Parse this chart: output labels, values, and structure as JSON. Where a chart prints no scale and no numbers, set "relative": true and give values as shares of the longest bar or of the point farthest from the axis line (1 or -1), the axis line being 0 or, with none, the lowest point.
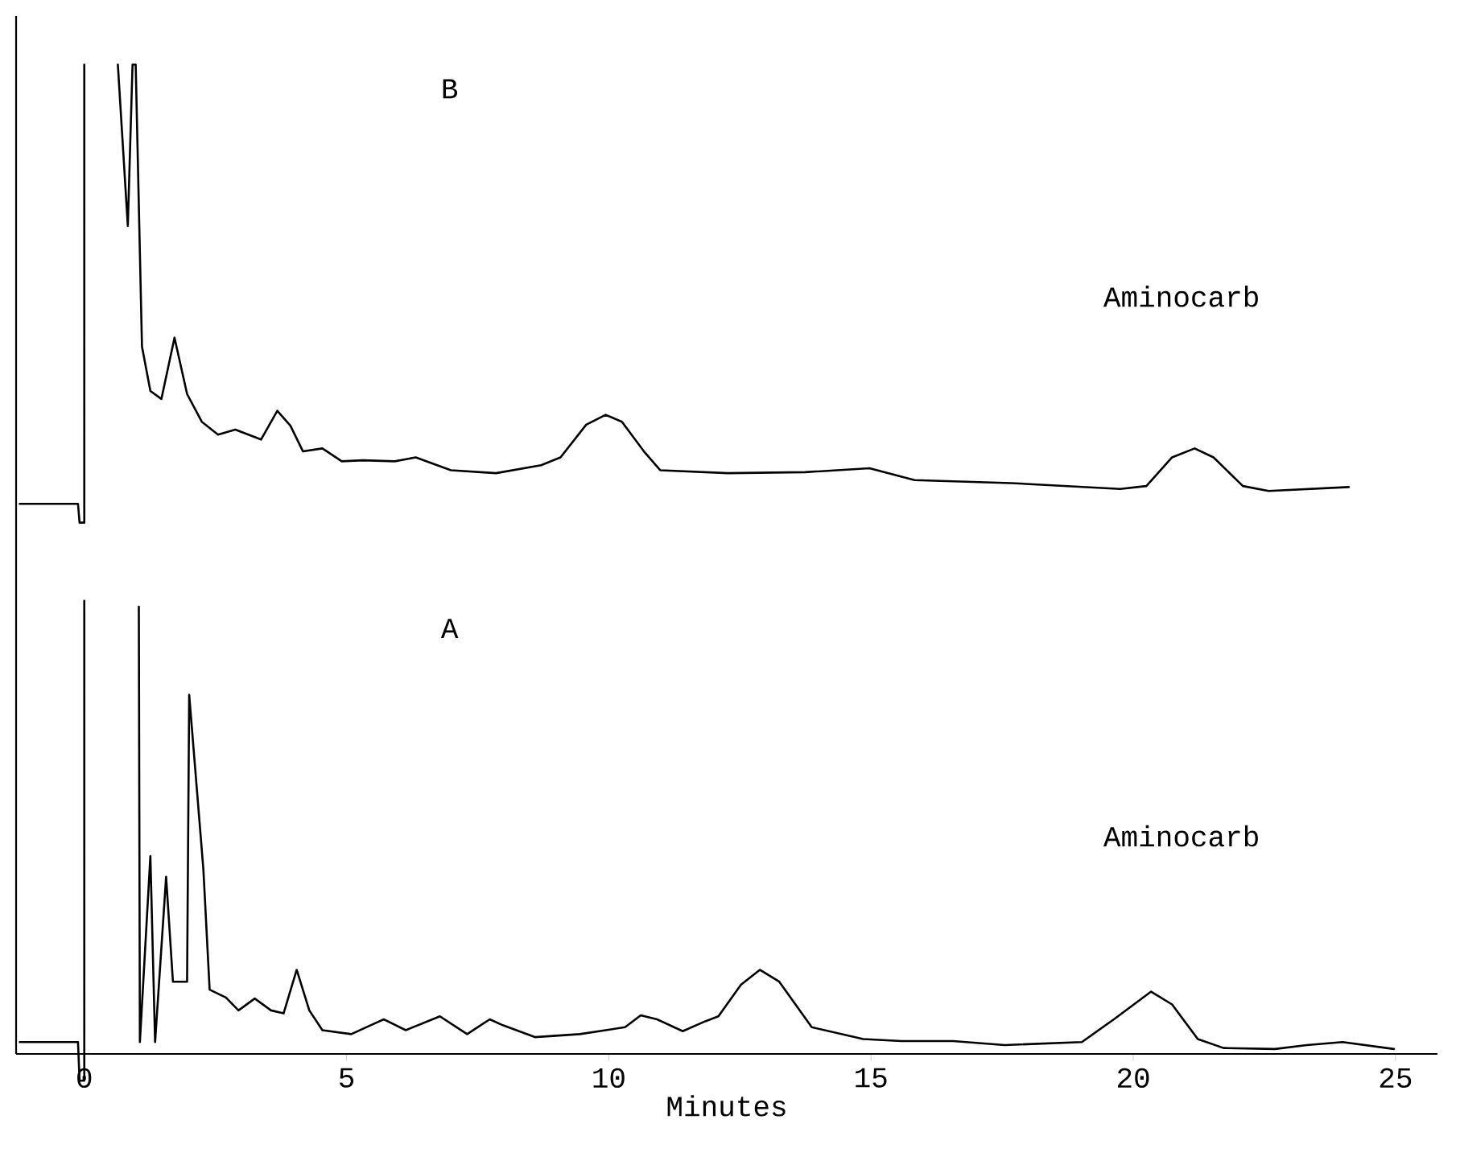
{
  "chart_data": {
    "type": "line",
    "relative": true,
    "xlabel": "Minutes",
    "xlim": [
      -1.3,
      25.8
    ],
    "xticks": [
      0,
      5,
      10,
      15,
      20,
      25
    ],
    "grid": false,
    "marker": "none",
    "line_style": "solid",
    "annotations": [
      "B",
      "Aminocarb",
      "A",
      "Aminocarb"
    ],
    "series": [
      {
        "color": "#000000",
        "x": [
          -1.23,
          -0.12,
          -0.09,
          0,
          0,
          null,
          0.64,
          0.83,
          0.92,
          0.98,
          1.1,
          1.26,
          1.47,
          1.72,
          1.96,
          2.24,
          2.55,
          2.88,
          3.37,
          3.68,
          3.93,
          4.17,
          4.54,
          4.91,
          5.31,
          5.92,
          6.32,
          6.99,
          7.85,
          8.71,
          9.08,
          9.57,
          9.94,
          10.25,
          10.67,
          10.98,
          12.27,
          13.74,
          14.97,
          15.83,
          17.67,
          19.75,
          20.25,
          20.74,
          21.17,
          21.53,
          22.09,
          22.58,
          24.11
        ],
        "values": [
          0.556,
          0.556,
          0.537,
          0.537,
          1,
          null,
          1,
          0.837,
          1,
          1,
          0.715,
          0.67,
          0.662,
          0.724,
          0.667,
          0.639,
          0.626,
          0.631,
          0.621,
          0.65,
          0.635,
          0.609,
          0.612,
          0.599,
          0.6,
          0.599,
          0.603,
          0.59,
          0.587,
          0.595,
          0.603,
          0.636,
          0.646,
          0.639,
          0.609,
          0.59,
          0.587,
          0.588,
          0.592,
          0.58,
          0.577,
          0.571,
          0.574,
          0.603,
          0.612,
          0.603,
          0.574,
          0.569,
          0.573
        ]
      },
      {
        "color": "#000000",
        "x": [
          -1.23,
          -0.12,
          -0.09,
          0,
          0,
          null,
          1.04,
          1.06,
          1.26,
          1.35,
          1.56,
          1.69,
          1.96,
          2.0,
          2.27,
          2.39,
          2.7,
          2.94,
          3.25,
          3.56,
          3.8,
          4.05,
          4.29,
          4.54,
          5.09,
          5.71,
          6.13,
          6.78,
          7.3,
          7.73,
          7.98,
          8.59,
          9.45,
          10.31,
          10.61,
          10.92,
          11.41,
          11.84,
          12.09,
          12.52,
          12.88,
          13.25,
          13.87,
          14.85,
          15.58,
          16.56,
          17.55,
          19.02,
          19.63,
          20.34,
          20.74,
          21.23,
          21.72,
          22.7,
          23.31,
          23.99,
          24.97
        ],
        "values": [
          0.012,
          0.012,
          -0.027,
          -0.027,
          0.458,
          null,
          0.452,
          0.012,
          0.2,
          0.012,
          0.179,
          0.073,
          0.073,
          0.363,
          0.187,
          0.065,
          0.057,
          0.044,
          0.056,
          0.044,
          0.041,
          0.085,
          0.044,
          0.024,
          0.02,
          0.035,
          0.024,
          0.038,
          0.02,
          0.035,
          0.029,
          0.017,
          0.02,
          0.027,
          0.039,
          0.035,
          0.023,
          0.033,
          0.038,
          0.07,
          0.085,
          0.073,
          0.027,
          0.015,
          0.013,
          0.013,
          0.009,
          0.012,
          0.035,
          0.063,
          0.05,
          0.015,
          0.006,
          0.005,
          0.009,
          0.012,
          0.005
        ]
      }
    ]
  }
}
